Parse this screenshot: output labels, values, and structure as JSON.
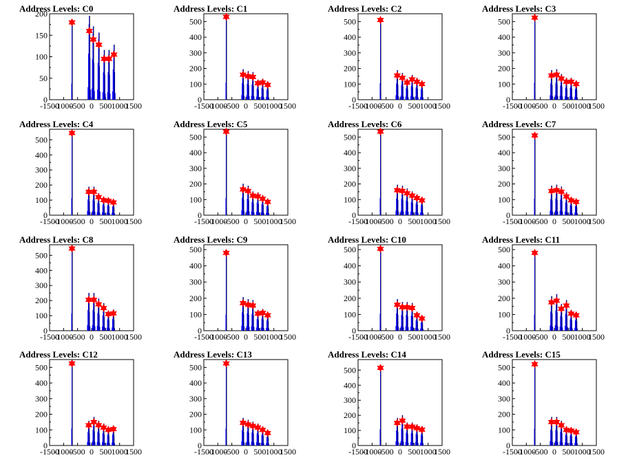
{
  "chart_data": [
    {
      "type": "histogram",
      "title": "Address Levels: C0",
      "xlim": [
        -1500,
        1500
      ],
      "ylim": [
        0,
        200
      ],
      "xticks": [
        -1500,
        -1000,
        -500,
        0,
        500,
        1000,
        1500
      ],
      "yticks": [
        0,
        50,
        100,
        150,
        200
      ],
      "levels": [
        {
          "x": -700,
          "y": 180
        },
        {
          "x": -80,
          "y": 160
        },
        {
          "x": 60,
          "y": 140
        },
        {
          "x": 260,
          "y": 128
        },
        {
          "x": 450,
          "y": 95
        },
        {
          "x": 620,
          "y": 95
        },
        {
          "x": 800,
          "y": 105
        }
      ]
    },
    {
      "type": "histogram",
      "title": "Address Levels: C1",
      "xlim": [
        -1500,
        1500
      ],
      "ylim": [
        0,
        550
      ],
      "xticks": [
        -1500,
        -1000,
        -500,
        0,
        500,
        1000,
        1500
      ],
      "yticks": [
        0,
        100,
        200,
        300,
        400,
        500
      ],
      "levels": [
        {
          "x": -700,
          "y": 530
        },
        {
          "x": -100,
          "y": 160
        },
        {
          "x": 80,
          "y": 150
        },
        {
          "x": 250,
          "y": 145
        },
        {
          "x": 430,
          "y": 105
        },
        {
          "x": 600,
          "y": 110
        },
        {
          "x": 780,
          "y": 95
        }
      ]
    },
    {
      "type": "histogram",
      "title": "Address Levels: C2",
      "xlim": [
        -1500,
        1500
      ],
      "ylim": [
        0,
        550
      ],
      "xticks": [
        -1500,
        -1000,
        -500,
        0,
        500,
        1000,
        1500
      ],
      "yticks": [
        0,
        100,
        200,
        300,
        400,
        500
      ],
      "levels": [
        {
          "x": -700,
          "y": 510
        },
        {
          "x": -100,
          "y": 155
        },
        {
          "x": 80,
          "y": 140
        },
        {
          "x": 250,
          "y": 110
        },
        {
          "x": 430,
          "y": 130
        },
        {
          "x": 600,
          "y": 115
        },
        {
          "x": 780,
          "y": 100
        }
      ]
    },
    {
      "type": "histogram",
      "title": "Address Levels: C3",
      "xlim": [
        -1500,
        1500
      ],
      "ylim": [
        0,
        550
      ],
      "xticks": [
        -1500,
        -1000,
        -500,
        0,
        500,
        1000,
        1500
      ],
      "yticks": [
        0,
        100,
        200,
        300,
        400,
        500
      ],
      "levels": [
        {
          "x": -700,
          "y": 525
        },
        {
          "x": -100,
          "y": 155
        },
        {
          "x": 80,
          "y": 160
        },
        {
          "x": 250,
          "y": 135
        },
        {
          "x": 430,
          "y": 115
        },
        {
          "x": 600,
          "y": 115
        },
        {
          "x": 780,
          "y": 100
        }
      ]
    },
    {
      "type": "histogram",
      "title": "Address Levels: C4",
      "xlim": [
        -1500,
        1500
      ],
      "ylim": [
        0,
        570
      ],
      "xticks": [
        -1500,
        -1000,
        -500,
        0,
        500,
        1000,
        1500
      ],
      "yticks": [
        0,
        100,
        200,
        300,
        400,
        500
      ],
      "levels": [
        {
          "x": -700,
          "y": 545
        },
        {
          "x": -100,
          "y": 155
        },
        {
          "x": 80,
          "y": 155
        },
        {
          "x": 250,
          "y": 120
        },
        {
          "x": 430,
          "y": 100
        },
        {
          "x": 600,
          "y": 95
        },
        {
          "x": 780,
          "y": 85
        }
      ]
    },
    {
      "type": "histogram",
      "title": "Address Levels: C5",
      "xlim": [
        -1500,
        1500
      ],
      "ylim": [
        0,
        550
      ],
      "xticks": [
        -1500,
        -1000,
        -500,
        0,
        500,
        1000,
        1500
      ],
      "yticks": [
        0,
        100,
        200,
        300,
        400,
        500
      ],
      "levels": [
        {
          "x": -700,
          "y": 535
        },
        {
          "x": -100,
          "y": 165
        },
        {
          "x": 80,
          "y": 155
        },
        {
          "x": 250,
          "y": 125
        },
        {
          "x": 430,
          "y": 120
        },
        {
          "x": 600,
          "y": 105
        },
        {
          "x": 780,
          "y": 85
        }
      ]
    },
    {
      "type": "histogram",
      "title": "Address Levels: C6",
      "xlim": [
        -1500,
        1500
      ],
      "ylim": [
        0,
        550
      ],
      "xticks": [
        -1500,
        -1000,
        -500,
        0,
        500,
        1000,
        1500
      ],
      "yticks": [
        0,
        100,
        200,
        300,
        400,
        500
      ],
      "levels": [
        {
          "x": -700,
          "y": 535
        },
        {
          "x": -100,
          "y": 160
        },
        {
          "x": 80,
          "y": 155
        },
        {
          "x": 250,
          "y": 140
        },
        {
          "x": 430,
          "y": 125
        },
        {
          "x": 600,
          "y": 110
        },
        {
          "x": 780,
          "y": 95
        }
      ]
    },
    {
      "type": "histogram",
      "title": "Address Levels: C7",
      "xlim": [
        -1500,
        1500
      ],
      "ylim": [
        0,
        550
      ],
      "xticks": [
        -1500,
        -1000,
        -500,
        0,
        500,
        1000,
        1500
      ],
      "yticks": [
        0,
        100,
        200,
        300,
        400,
        500
      ],
      "levels": [
        {
          "x": -700,
          "y": 510
        },
        {
          "x": -100,
          "y": 155
        },
        {
          "x": 80,
          "y": 160
        },
        {
          "x": 250,
          "y": 150
        },
        {
          "x": 430,
          "y": 120
        },
        {
          "x": 600,
          "y": 95
        },
        {
          "x": 780,
          "y": 85
        }
      ]
    },
    {
      "type": "histogram",
      "title": "Address Levels: C8",
      "xlim": [
        -1500,
        1500
      ],
      "ylim": [
        0,
        570
      ],
      "xticks": [
        -1500,
        -1000,
        -500,
        0,
        500,
        1000,
        1500
      ],
      "yticks": [
        0,
        100,
        200,
        300,
        400,
        500
      ],
      "levels": [
        {
          "x": -700,
          "y": 545
        },
        {
          "x": -100,
          "y": 205
        },
        {
          "x": 80,
          "y": 205
        },
        {
          "x": 250,
          "y": 175
        },
        {
          "x": 430,
          "y": 150
        },
        {
          "x": 600,
          "y": 110
        },
        {
          "x": 780,
          "y": 115
        }
      ]
    },
    {
      "type": "histogram",
      "title": "Address Levels: C9",
      "xlim": [
        -1500,
        1500
      ],
      "ylim": [
        0,
        530
      ],
      "xticks": [
        -1500,
        -1000,
        -500,
        0,
        500,
        1000,
        1500
      ],
      "yticks": [
        0,
        100,
        200,
        300,
        400,
        500
      ],
      "levels": [
        {
          "x": -700,
          "y": 480
        },
        {
          "x": -100,
          "y": 170
        },
        {
          "x": 80,
          "y": 160
        },
        {
          "x": 250,
          "y": 155
        },
        {
          "x": 430,
          "y": 105
        },
        {
          "x": 600,
          "y": 110
        },
        {
          "x": 780,
          "y": 95
        }
      ]
    },
    {
      "type": "histogram",
      "title": "Address Levels: C10",
      "xlim": [
        -1500,
        1500
      ],
      "ylim": [
        0,
        530
      ],
      "xticks": [
        -1500,
        -1000,
        -500,
        0,
        500,
        1000,
        1500
      ],
      "yticks": [
        0,
        100,
        200,
        300,
        400,
        500
      ],
      "levels": [
        {
          "x": -700,
          "y": 505
        },
        {
          "x": -100,
          "y": 160
        },
        {
          "x": 80,
          "y": 145
        },
        {
          "x": 250,
          "y": 145
        },
        {
          "x": 430,
          "y": 140
        },
        {
          "x": 600,
          "y": 95
        },
        {
          "x": 780,
          "y": 75
        }
      ]
    },
    {
      "type": "histogram",
      "title": "Address Levels: C11",
      "xlim": [
        -1500,
        1500
      ],
      "ylim": [
        0,
        530
      ],
      "xticks": [
        -1500,
        -1000,
        -500,
        0,
        500,
        1000,
        1500
      ],
      "yticks": [
        0,
        100,
        200,
        300,
        400,
        500
      ],
      "levels": [
        {
          "x": -700,
          "y": 480
        },
        {
          "x": -100,
          "y": 175
        },
        {
          "x": 80,
          "y": 185
        },
        {
          "x": 250,
          "y": 135
        },
        {
          "x": 430,
          "y": 155
        },
        {
          "x": 600,
          "y": 105
        },
        {
          "x": 780,
          "y": 95
        }
      ]
    },
    {
      "type": "histogram",
      "title": "Address Levels: C12",
      "xlim": [
        -1500,
        1500
      ],
      "ylim": [
        0,
        550
      ],
      "xticks": [
        -1500,
        -1000,
        -500,
        0,
        500,
        1000,
        1500
      ],
      "yticks": [
        0,
        100,
        200,
        300,
        400,
        500
      ],
      "levels": [
        {
          "x": -700,
          "y": 525
        },
        {
          "x": -100,
          "y": 130
        },
        {
          "x": 80,
          "y": 150
        },
        {
          "x": 250,
          "y": 130
        },
        {
          "x": 430,
          "y": 115
        },
        {
          "x": 600,
          "y": 100
        },
        {
          "x": 780,
          "y": 105
        }
      ]
    },
    {
      "type": "histogram",
      "title": "Address Levels: C13",
      "xlim": [
        -1500,
        1500
      ],
      "ylim": [
        0,
        550
      ],
      "xticks": [
        -1500,
        -1000,
        -500,
        0,
        500,
        1000,
        1500
      ],
      "yticks": [
        0,
        100,
        200,
        300,
        400,
        500
      ],
      "levels": [
        {
          "x": -700,
          "y": 525
        },
        {
          "x": -100,
          "y": 145
        },
        {
          "x": 80,
          "y": 135
        },
        {
          "x": 250,
          "y": 125
        },
        {
          "x": 430,
          "y": 115
        },
        {
          "x": 600,
          "y": 100
        },
        {
          "x": 780,
          "y": 80
        }
      ]
    },
    {
      "type": "histogram",
      "title": "Address Levels: C14",
      "xlim": [
        -1500,
        1500
      ],
      "ylim": [
        0,
        570
      ],
      "xticks": [
        -1500,
        -1000,
        -500,
        0,
        500,
        1000,
        1500
      ],
      "yticks": [
        0,
        100,
        200,
        300,
        400,
        500
      ],
      "levels": [
        {
          "x": -700,
          "y": 515
        },
        {
          "x": -100,
          "y": 150
        },
        {
          "x": 80,
          "y": 165
        },
        {
          "x": 250,
          "y": 125
        },
        {
          "x": 430,
          "y": 125
        },
        {
          "x": 600,
          "y": 115
        },
        {
          "x": 780,
          "y": 105
        }
      ]
    },
    {
      "type": "histogram",
      "title": "Address Levels: C15",
      "xlim": [
        -1500,
        1500
      ],
      "ylim": [
        0,
        550
      ],
      "xticks": [
        -1500,
        -1000,
        -500,
        0,
        500,
        1000,
        1500
      ],
      "yticks": [
        0,
        100,
        200,
        300,
        400,
        500
      ],
      "levels": [
        {
          "x": -700,
          "y": 520
        },
        {
          "x": -100,
          "y": 150
        },
        {
          "x": 80,
          "y": 150
        },
        {
          "x": 250,
          "y": 130
        },
        {
          "x": 430,
          "y": 100
        },
        {
          "x": 600,
          "y": 95
        },
        {
          "x": 780,
          "y": 85
        }
      ]
    }
  ],
  "colors": {
    "histogram": "#0000ff",
    "outline": "#000000",
    "marker": "#ff0000"
  }
}
